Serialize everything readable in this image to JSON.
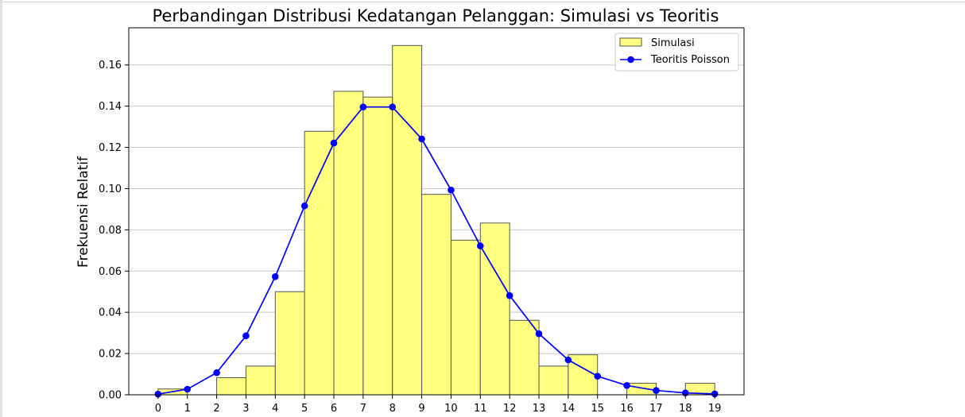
{
  "chart_data": {
    "type": "bar",
    "title": "Perbandingan Distribusi Kedatangan Pelanggan: Simulasi vs Teoritis",
    "xlabel": "",
    "ylabel": "Frekuensi Relatif",
    "xlim": [
      -1,
      20
    ],
    "ylim": [
      0,
      0.178
    ],
    "x_ticks": [
      0,
      1,
      2,
      3,
      4,
      5,
      6,
      7,
      8,
      9,
      10,
      11,
      12,
      13,
      14,
      15,
      16,
      17,
      18,
      19
    ],
    "y_ticks": [
      0.0,
      0.02,
      0.04,
      0.06,
      0.08,
      0.1,
      0.12,
      0.14,
      0.16
    ],
    "y_tick_labels": [
      "0.00",
      "0.02",
      "0.04",
      "0.06",
      "0.08",
      "0.10",
      "0.12",
      "0.14",
      "0.16"
    ],
    "grid": "horizontal",
    "legend_position": "upper-right",
    "series": [
      {
        "name": "Simulasi",
        "kind": "histogram",
        "color": "#ffff80",
        "edge_color": "#555555",
        "bins": [
          {
            "from": 0,
            "to": 1,
            "value": 0.0028
          },
          {
            "from": 1,
            "to": 2,
            "value": 0.0
          },
          {
            "from": 2,
            "to": 3,
            "value": 0.0083
          },
          {
            "from": 3,
            "to": 4,
            "value": 0.0139
          },
          {
            "from": 4,
            "to": 5,
            "value": 0.05
          },
          {
            "from": 5,
            "to": 6,
            "value": 0.1278
          },
          {
            "from": 6,
            "to": 7,
            "value": 0.1472
          },
          {
            "from": 7,
            "to": 8,
            "value": 0.1444
          },
          {
            "from": 8,
            "to": 9,
            "value": 0.1694
          },
          {
            "from": 9,
            "to": 10,
            "value": 0.0972
          },
          {
            "from": 10,
            "to": 11,
            "value": 0.075
          },
          {
            "from": 11,
            "to": 12,
            "value": 0.0833
          },
          {
            "from": 12,
            "to": 13,
            "value": 0.0361
          },
          {
            "from": 13,
            "to": 14,
            "value": 0.0139
          },
          {
            "from": 14,
            "to": 15,
            "value": 0.0194
          },
          {
            "from": 15,
            "to": 16,
            "value": 0.0
          },
          {
            "from": 16,
            "to": 17,
            "value": 0.0056
          },
          {
            "from": 17,
            "to": 18,
            "value": 0.0
          },
          {
            "from": 18,
            "to": 19,
            "value": 0.0056
          }
        ]
      },
      {
        "name": "Teoritis Poisson",
        "kind": "line",
        "color": "#0000ff",
        "x": [
          0,
          1,
          2,
          3,
          4,
          5,
          6,
          7,
          8,
          9,
          10,
          11,
          12,
          13,
          14,
          15,
          16,
          17,
          18,
          19
        ],
        "values": [
          0.0003,
          0.0027,
          0.0107,
          0.0286,
          0.0573,
          0.0916,
          0.1221,
          0.1396,
          0.1396,
          0.1241,
          0.0993,
          0.0722,
          0.0481,
          0.0296,
          0.0169,
          0.009,
          0.0045,
          0.0021,
          0.0009,
          0.0004
        ]
      }
    ]
  }
}
